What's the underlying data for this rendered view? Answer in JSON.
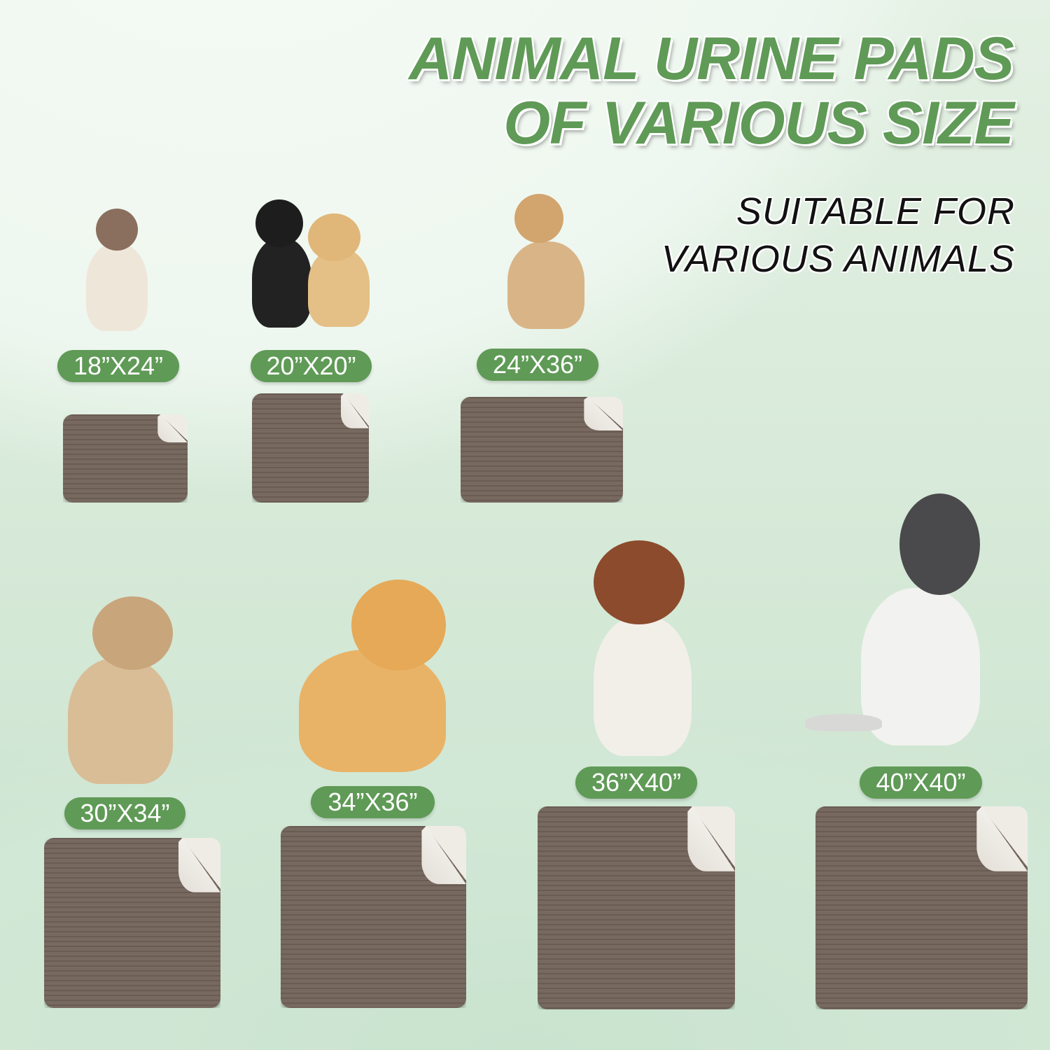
{
  "header": {
    "title_line1": "ANIMAL URINE PADS",
    "title_line2": "OF VARIOUS SIZE",
    "subtitle_line1": "SUITABLE FOR",
    "subtitle_line2": "VARIOUS ANIMALS"
  },
  "colors": {
    "accent": "#5f9a56",
    "pad": "#77695f",
    "pad_back": "#efece6"
  },
  "products": [
    {
      "size": "18”X24”",
      "animal": "siamese-cat"
    },
    {
      "size": "20”X20”",
      "animal": "cat-and-puppy"
    },
    {
      "size": "24”X36”",
      "animal": "tan-dog"
    },
    {
      "size": "30”X34”",
      "animal": "pug"
    },
    {
      "size": "34”X36”",
      "animal": "corgi"
    },
    {
      "size": "36”X40”",
      "animal": "australian-shepherd"
    },
    {
      "size": "40”X40”",
      "animal": "husky"
    }
  ]
}
